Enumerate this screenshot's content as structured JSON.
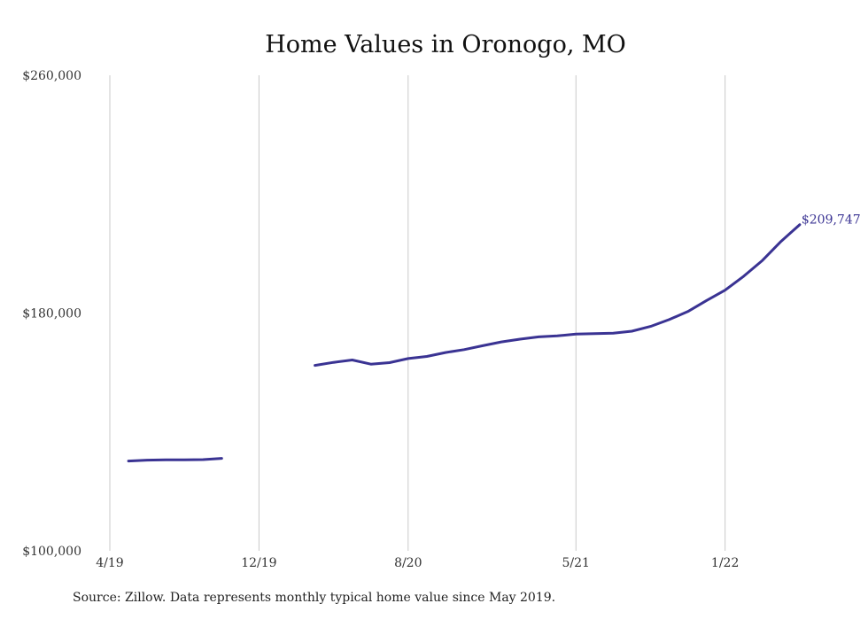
{
  "chart_data": {
    "type": "line",
    "title": "Home Values in Oronogo, MO",
    "xlabel": "",
    "ylabel": "",
    "ylim": [
      100000,
      260000
    ],
    "y_ticks": [
      "$260,000",
      "$180,000",
      "$100,000"
    ],
    "y_tick_values": [
      260000,
      180000,
      100000
    ],
    "x_ticks": [
      "4/19",
      "12/19",
      "8/20",
      "5/21",
      "1/22"
    ],
    "x_tick_values": [
      "2019-04",
      "2019-12",
      "2020-08",
      "2021-05",
      "2022-01"
    ],
    "grid": "vertical",
    "series": [
      {
        "color": "#3a3393",
        "segments": [
          [
            {
              "x": "2019-05",
              "y": 130200
            },
            {
              "x": "2019-06",
              "y": 130500
            },
            {
              "x": "2019-07",
              "y": 130600
            },
            {
              "x": "2019-08",
              "y": 130600
            },
            {
              "x": "2019-09",
              "y": 130700
            },
            {
              "x": "2019-10",
              "y": 131100
            }
          ],
          [
            {
              "x": "2020-03",
              "y": 162400
            },
            {
              "x": "2020-04",
              "y": 163400
            },
            {
              "x": "2020-05",
              "y": 164200
            },
            {
              "x": "2020-06",
              "y": 162800
            },
            {
              "x": "2020-07",
              "y": 163300
            },
            {
              "x": "2020-08",
              "y": 164700
            },
            {
              "x": "2020-09",
              "y": 165400
            },
            {
              "x": "2020-10",
              "y": 166700
            },
            {
              "x": "2020-11",
              "y": 167700
            },
            {
              "x": "2020-12",
              "y": 169000
            },
            {
              "x": "2021-01",
              "y": 170300
            },
            {
              "x": "2021-02",
              "y": 171200
            },
            {
              "x": "2021-03",
              "y": 172000
            },
            {
              "x": "2021-04",
              "y": 172300
            },
            {
              "x": "2021-05",
              "y": 172900
            },
            {
              "x": "2021-06",
              "y": 173100
            },
            {
              "x": "2021-07",
              "y": 173200
            },
            {
              "x": "2021-08",
              "y": 173900
            },
            {
              "x": "2021-09",
              "y": 175500
            },
            {
              "x": "2021-10",
              "y": 177800
            },
            {
              "x": "2021-11",
              "y": 180500
            },
            {
              "x": "2021-12",
              "y": 184200
            },
            {
              "x": "2022-01",
              "y": 187700
            },
            {
              "x": "2022-02",
              "y": 192400
            },
            {
              "x": "2022-03",
              "y": 197700
            },
            {
              "x": "2022-04",
              "y": 204100
            },
            {
              "x": "2022-05",
              "y": 209747
            }
          ]
        ]
      }
    ],
    "end_label": "$209,747"
  },
  "source_note": "Source: Zillow. Data represents monthly typical home value since May 2019."
}
